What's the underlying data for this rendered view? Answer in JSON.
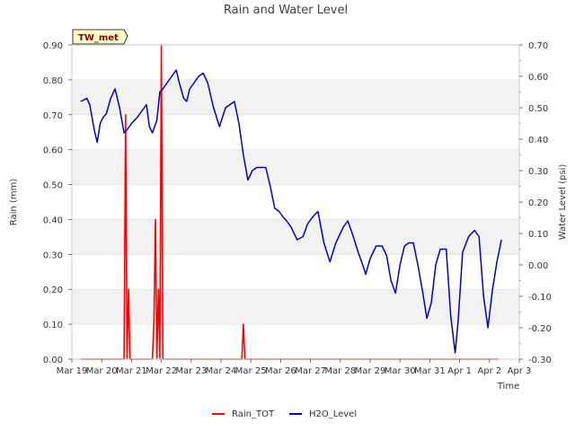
{
  "chart_data": {
    "type": "line",
    "title": "Rain and Water Level",
    "station_label": "TW_met",
    "xlabel": "Time",
    "ylabel_left": "Rain (mm)",
    "ylabel_right": "Water Level (psi)",
    "x_range_days": [
      0,
      15
    ],
    "ylim_left": [
      0,
      0.9
    ],
    "ylim_right": [
      -0.3,
      0.7
    ],
    "x_ticks": [
      {
        "day": 0,
        "label": "Mar 19"
      },
      {
        "day": 1,
        "label": "Mar 20"
      },
      {
        "day": 2,
        "label": "Mar 21"
      },
      {
        "day": 3,
        "label": "Mar 22"
      },
      {
        "day": 4,
        "label": "Mar 23"
      },
      {
        "day": 5,
        "label": "Mar 24"
      },
      {
        "day": 6,
        "label": "Mar 25"
      },
      {
        "day": 7,
        "label": "Mar 26"
      },
      {
        "day": 8,
        "label": "Mar 27"
      },
      {
        "day": 9,
        "label": "Mar 28"
      },
      {
        "day": 10,
        "label": "Mar 29"
      },
      {
        "day": 11,
        "label": "Mar 30"
      },
      {
        "day": 12,
        "label": "Mar 31"
      },
      {
        "day": 13,
        "label": "Apr 1"
      },
      {
        "day": 14,
        "label": "Apr 2"
      },
      {
        "day": 15,
        "label": "Apr 3"
      }
    ],
    "y_left_ticks": [
      "0.00",
      "0.10",
      "0.20",
      "0.30",
      "0.40",
      "0.50",
      "0.60",
      "0.70",
      "0.80",
      "0.90"
    ],
    "y_left_values": [
      0,
      0.1,
      0.2,
      0.3,
      0.4,
      0.5,
      0.6,
      0.7,
      0.8,
      0.9
    ],
    "y_right_ticks": [
      "-0.30",
      "-0.20",
      "-0.10",
      "0.00",
      "0.10",
      "0.20",
      "0.30",
      "0.40",
      "0.50",
      "0.60",
      "0.70"
    ],
    "y_right_values": [
      -0.3,
      -0.2,
      -0.1,
      0,
      0.1,
      0.2,
      0.3,
      0.4,
      0.5,
      0.6,
      0.7
    ],
    "series": [
      {
        "name": "Rain_TOT",
        "color": "#ff0000",
        "axis": "left",
        "x": [
          0.3,
          1.75,
          1.8,
          1.85,
          1.9,
          1.95,
          2.0,
          2.05,
          2.3,
          2.7,
          2.75,
          2.8,
          2.85,
          2.9,
          2.95,
          3.0,
          3.05,
          3.1,
          3.15,
          5.7,
          5.75,
          5.8,
          14.3
        ],
        "values": [
          0,
          0,
          0.7,
          0,
          0.2,
          0,
          0,
          0,
          0,
          0,
          0.1,
          0.4,
          0,
          0.2,
          0,
          0.9,
          0,
          0,
          0,
          0,
          0.1,
          0,
          0
        ]
      },
      {
        "name": "H2O_Level",
        "color": "#0000cc",
        "axis": "right",
        "x": [
          0.3,
          0.5,
          0.6,
          0.75,
          0.85,
          0.95,
          1.05,
          1.15,
          1.3,
          1.45,
          1.6,
          1.75,
          1.85,
          2.0,
          2.2,
          2.35,
          2.5,
          2.6,
          2.7,
          2.85,
          2.95,
          3.05,
          3.2,
          3.35,
          3.5,
          3.6,
          3.75,
          3.85,
          3.95,
          4.1,
          4.25,
          4.4,
          4.55,
          4.75,
          4.95,
          5.15,
          5.3,
          5.45,
          5.6,
          5.75,
          5.9,
          6.05,
          6.2,
          6.35,
          6.5,
          6.65,
          6.8,
          6.95,
          7.1,
          7.2,
          7.35,
          7.55,
          7.75,
          7.9,
          8.05,
          8.25,
          8.45,
          8.65,
          8.85,
          9.0,
          9.1,
          9.25,
          9.4,
          9.6,
          9.75,
          9.85,
          10.0,
          10.2,
          10.4,
          10.55,
          10.7,
          10.85,
          11.0,
          11.15,
          11.3,
          11.45,
          11.6,
          11.75,
          11.9,
          12.05,
          12.2,
          12.35,
          12.55,
          12.7,
          12.85,
          12.95,
          13.1,
          13.3,
          13.5,
          13.65,
          13.8,
          13.95,
          14.1,
          14.25,
          14.4
        ],
        "values": [
          0.52,
          0.53,
          0.51,
          0.43,
          0.39,
          0.45,
          0.47,
          0.48,
          0.53,
          0.56,
          0.5,
          0.42,
          0.43,
          0.45,
          0.47,
          0.49,
          0.51,
          0.44,
          0.42,
          0.46,
          0.55,
          0.56,
          0.58,
          0.6,
          0.62,
          0.58,
          0.53,
          0.52,
          0.56,
          0.58,
          0.6,
          0.61,
          0.58,
          0.5,
          0.44,
          0.5,
          0.51,
          0.52,
          0.45,
          0.35,
          0.27,
          0.3,
          0.31,
          0.31,
          0.31,
          0.25,
          0.18,
          0.17,
          0.15,
          0.14,
          0.12,
          0.08,
          0.09,
          0.13,
          0.15,
          0.17,
          0.07,
          0.01,
          0.07,
          0.1,
          0.12,
          0.14,
          0.1,
          0.04,
          0.0,
          -0.03,
          0.02,
          0.06,
          0.06,
          0.03,
          -0.05,
          -0.09,
          0.0,
          0.06,
          0.07,
          0.07,
          0.0,
          -0.08,
          -0.17,
          -0.12,
          0.0,
          0.05,
          0.05,
          -0.16,
          -0.28,
          -0.18,
          0.04,
          0.09,
          0.11,
          0.09,
          -0.1,
          -0.2,
          -0.08,
          0.01,
          0.08
        ]
      }
    ],
    "legend": [
      "Rain_TOT",
      "H2O_Level"
    ],
    "legend_position": "bottom-center"
  }
}
